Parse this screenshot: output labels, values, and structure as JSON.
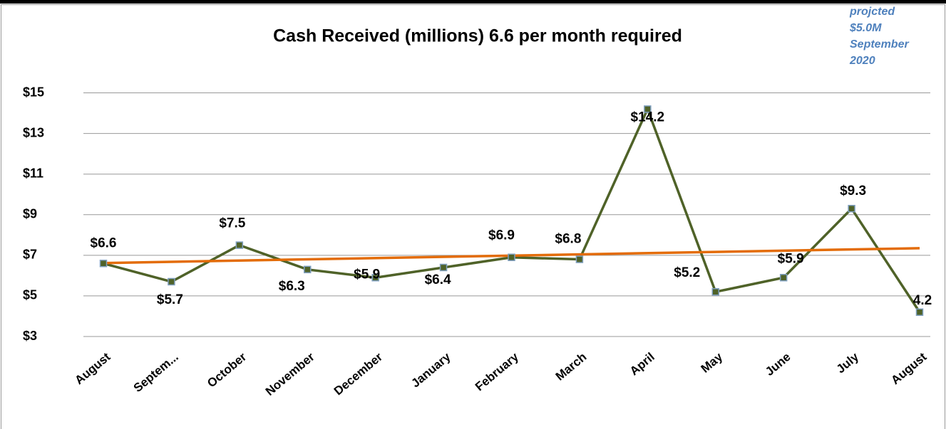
{
  "chart_data": {
    "type": "line",
    "title": "Cash Received (millions)  6.6 per month required",
    "annotation": [
      "projcted",
      "$5.0M",
      "September",
      "2020"
    ],
    "categories": [
      "August",
      "Septem...",
      "October",
      "November",
      "December",
      "January",
      "February",
      "March",
      "April",
      "May",
      "June",
      "July",
      "August"
    ],
    "values": [
      6.6,
      5.7,
      7.5,
      6.3,
      5.9,
      6.4,
      6.9,
      6.8,
      14.2,
      5.2,
      5.9,
      9.3,
      4.2
    ],
    "value_labels": [
      "$6.6",
      "$5.7",
      "$7.5",
      "$6.3",
      "$5.9",
      "$6.4",
      "$6.9",
      "$6.8",
      "$14.2",
      "$5.2",
      "$5.9",
      "$9.3",
      "4.2"
    ],
    "color": "#4f6228",
    "marker_color": "#7f9fbf",
    "trendline": {
      "color": "#e36c09",
      "values": [
        6.62,
        7.35
      ]
    },
    "ylim": [
      3,
      15.3
    ],
    "yticks": [
      {
        "value": 3,
        "label": "$3"
      },
      {
        "value": 5,
        "label": "$5"
      },
      {
        "value": 7,
        "label": "$7"
      },
      {
        "value": 9,
        "label": "$9"
      },
      {
        "value": 11,
        "label": "$11"
      },
      {
        "value": 13,
        "label": "$13"
      },
      {
        "value": 15,
        "label": "$15"
      }
    ],
    "grid": true
  }
}
